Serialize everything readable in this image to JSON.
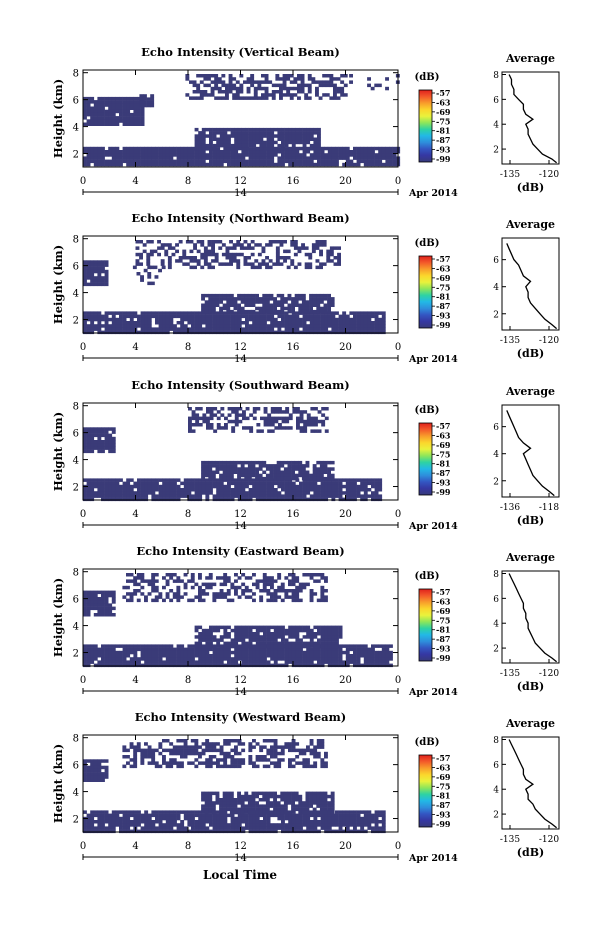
{
  "figure": {
    "date_label": "Apr 2014",
    "day_label": "14",
    "xlabel": "Local Time"
  },
  "colorbar": {
    "unit_label": "(dB)",
    "tick_labels": [
      "-57",
      "-63",
      "-69",
      "-75",
      "-81",
      "-87",
      "-93",
      "-99"
    ],
    "colors": [
      "#e0201c",
      "#f3592a",
      "#f89d2b",
      "#fbd62c",
      "#e9f23c",
      "#8ee65a",
      "#2fd3a2",
      "#22b9e6",
      "#2e8fdc",
      "#3356c2",
      "#3537a2",
      "#373a7a"
    ]
  },
  "colors": {
    "echo_fill": "#3a3b78",
    "background": "#ffffff"
  },
  "chart_data": [
    {
      "type": "heatmap",
      "title": "Echo Intensity (Vertical Beam)",
      "ylabel": "Height (km)",
      "xlim": [
        0,
        24
      ],
      "ylim": [
        1.0,
        8.2
      ],
      "x_ticks": [
        "0",
        "4",
        "8",
        "12",
        "16",
        "20",
        "0"
      ],
      "y_ticks": [
        "2",
        "4",
        "6",
        "8"
      ],
      "bands": [
        {
          "x0": 0.0,
          "x1": 4.4,
          "y0": 4.2,
          "y1": 6.2,
          "density": 0.92
        },
        {
          "x0": 4.3,
          "x1": 5.3,
          "y0": 5.6,
          "y1": 6.4,
          "density": 0.85
        },
        {
          "x0": 0.0,
          "x1": 24.0,
          "y0": 1.1,
          "y1": 2.5,
          "density": 0.93
        },
        {
          "x0": 8.5,
          "x1": 18.0,
          "y0": 2.4,
          "y1": 3.9,
          "density": 0.88
        },
        {
          "x0": 7.8,
          "x1": 20.0,
          "y0": 6.0,
          "y1": 7.9,
          "density": 0.55
        },
        {
          "x0": 20.0,
          "x1": 24.0,
          "y0": 6.8,
          "y1": 7.9,
          "density": 0.12
        }
      ],
      "average": {
        "title": "Average",
        "xlabel": "(dB)",
        "x_ticks": [
          "-135",
          "-120"
        ],
        "y_ticks": [
          "2",
          "4",
          "6",
          "8"
        ],
        "xlim": [
          -138,
          -114
        ],
        "ylim": [
          0.8,
          8.2
        ],
        "height": [
          0.9,
          1.2,
          1.6,
          2.0,
          2.4,
          2.8,
          3.2,
          3.6,
          4.0,
          4.4,
          4.8,
          5.2,
          5.6,
          6.0,
          6.4,
          6.8,
          7.2,
          7.6,
          8.0
        ],
        "value": [
          -115,
          -117,
          -121,
          -123,
          -125,
          -126,
          -127,
          -127,
          -128,
          -125,
          -128,
          -129,
          -129,
          -131,
          -133,
          -133,
          -134,
          -134,
          -135
        ]
      }
    },
    {
      "type": "heatmap",
      "title": "Echo Intensity (Northward Beam)",
      "ylabel": "Height (km)",
      "xlim": [
        0,
        24
      ],
      "ylim": [
        1.0,
        8.2
      ],
      "x_ticks": [
        "0",
        "4",
        "8",
        "12",
        "16",
        "20",
        "0"
      ],
      "y_ticks": [
        "2",
        "4",
        "6",
        "8"
      ],
      "bands": [
        {
          "x0": 0.0,
          "x1": 1.8,
          "y0": 4.6,
          "y1": 6.4,
          "density": 0.9
        },
        {
          "x0": 0.0,
          "x1": 23.0,
          "y0": 1.1,
          "y1": 2.6,
          "density": 0.92
        },
        {
          "x0": 9.0,
          "x1": 19.0,
          "y0": 2.5,
          "y1": 3.9,
          "density": 0.85
        },
        {
          "x0": 4.0,
          "x1": 19.5,
          "y0": 5.8,
          "y1": 7.9,
          "density": 0.5
        },
        {
          "x0": 3.8,
          "x1": 6.0,
          "y0": 4.8,
          "y1": 6.0,
          "density": 0.35
        }
      ],
      "average": {
        "title": "Average",
        "xlabel": "(dB)",
        "x_ticks": [
          "-135",
          "-120"
        ],
        "y_ticks": [
          "2",
          "4",
          "6"
        ],
        "xlim": [
          -138,
          -114
        ],
        "ylim": [
          0.8,
          7.6
        ],
        "height": [
          0.9,
          1.2,
          1.6,
          2.0,
          2.4,
          2.8,
          3.2,
          3.6,
          4.0,
          4.4,
          4.8,
          5.2,
          5.6,
          6.0,
          6.4,
          6.8,
          7.2
        ],
        "value": [
          -115,
          -117,
          -120,
          -122,
          -124,
          -126,
          -127,
          -127,
          -128,
          -126,
          -129,
          -130,
          -131,
          -133,
          -134,
          -135,
          -136
        ]
      }
    },
    {
      "type": "heatmap",
      "title": "Echo Intensity (Southward Beam)",
      "ylabel": "Height (km)",
      "xlim": [
        0,
        24
      ],
      "ylim": [
        1.0,
        8.2
      ],
      "x_ticks": [
        "0",
        "4",
        "8",
        "12",
        "16",
        "20",
        "0"
      ],
      "y_ticks": [
        "2",
        "4",
        "6",
        "8"
      ],
      "bands": [
        {
          "x0": 0.0,
          "x1": 2.4,
          "y0": 4.6,
          "y1": 6.4,
          "density": 0.9
        },
        {
          "x0": 0.0,
          "x1": 22.5,
          "y0": 1.1,
          "y1": 2.6,
          "density": 0.92
        },
        {
          "x0": 9.0,
          "x1": 19.0,
          "y0": 2.5,
          "y1": 3.9,
          "density": 0.86
        },
        {
          "x0": 8.0,
          "x1": 18.5,
          "y0": 6.0,
          "y1": 7.9,
          "density": 0.5
        },
        {
          "x0": 5.0,
          "x1": 6.0,
          "y0": 6.2,
          "y1": 6.9,
          "density": 0.3
        }
      ],
      "average": {
        "title": "Average",
        "xlabel": "(dB)",
        "x_ticks": [
          "-136",
          "-118"
        ],
        "y_ticks": [
          "2",
          "4",
          "6"
        ],
        "xlim": [
          -138,
          -114
        ],
        "ylim": [
          0.8,
          7.6
        ],
        "height": [
          0.9,
          1.2,
          1.6,
          2.0,
          2.4,
          2.8,
          3.2,
          3.6,
          4.0,
          4.4,
          4.8,
          5.2,
          5.6,
          6.0,
          6.4,
          6.8,
          7.2
        ],
        "value": [
          -116,
          -118,
          -121,
          -123,
          -125,
          -126,
          -127,
          -128,
          -129,
          -126,
          -129,
          -131,
          -132,
          -133,
          -134,
          -135,
          -136
        ]
      }
    },
    {
      "type": "heatmap",
      "title": "Echo Intensity (Eastward Beam)",
      "ylabel": "Height (km)",
      "xlim": [
        0,
        24
      ],
      "ylim": [
        1.0,
        8.2
      ],
      "x_ticks": [
        "0",
        "4",
        "8",
        "12",
        "16",
        "20",
        "0"
      ],
      "y_ticks": [
        "2",
        "4",
        "6",
        "8"
      ],
      "bands": [
        {
          "x0": 0.0,
          "x1": 2.2,
          "y0": 4.8,
          "y1": 6.6,
          "density": 0.9
        },
        {
          "x0": 0.0,
          "x1": 23.5,
          "y0": 1.1,
          "y1": 2.6,
          "density": 0.92
        },
        {
          "x0": 8.5,
          "x1": 19.5,
          "y0": 2.5,
          "y1": 4.0,
          "density": 0.86
        },
        {
          "x0": 3.0,
          "x1": 18.5,
          "y0": 5.8,
          "y1": 7.9,
          "density": 0.48
        }
      ],
      "average": {
        "title": "Average",
        "xlabel": "(dB)",
        "x_ticks": [
          "-135",
          "-120"
        ],
        "y_ticks": [
          "2",
          "4",
          "6",
          "8"
        ],
        "xlim": [
          -138,
          -114
        ],
        "ylim": [
          0.8,
          8.2
        ],
        "height": [
          0.9,
          1.2,
          1.6,
          2.0,
          2.4,
          2.8,
          3.2,
          3.6,
          4.0,
          4.4,
          4.8,
          5.2,
          5.6,
          6.0,
          6.4,
          6.8,
          7.2,
          7.6,
          8.0
        ],
        "value": [
          -115,
          -117,
          -120,
          -122,
          -124,
          -125,
          -126,
          -127,
          -127,
          -128,
          -128,
          -129,
          -129,
          -130,
          -131,
          -132,
          -133,
          -134,
          -135
        ]
      }
    },
    {
      "type": "heatmap",
      "title": "Echo Intensity (Westward Beam)",
      "ylabel": "Height (km)",
      "xlim": [
        0,
        24
      ],
      "ylim": [
        1.0,
        8.2
      ],
      "x_ticks": [
        "0",
        "4",
        "8",
        "12",
        "16",
        "20",
        "0"
      ],
      "y_ticks": [
        "2",
        "4",
        "6",
        "8"
      ],
      "bands": [
        {
          "x0": 0.0,
          "x1": 1.8,
          "y0": 4.8,
          "y1": 6.4,
          "density": 0.88
        },
        {
          "x0": 0.0,
          "x1": 23.0,
          "y0": 1.1,
          "y1": 2.6,
          "density": 0.92
        },
        {
          "x0": 9.0,
          "x1": 19.0,
          "y0": 2.5,
          "y1": 4.0,
          "density": 0.86
        },
        {
          "x0": 3.0,
          "x1": 18.5,
          "y0": 5.8,
          "y1": 7.9,
          "density": 0.5
        }
      ],
      "average": {
        "title": "Average",
        "xlabel": "(dB)",
        "x_ticks": [
          "-135",
          "-120"
        ],
        "y_ticks": [
          "2",
          "4",
          "6",
          "8"
        ],
        "xlim": [
          -138,
          -114
        ],
        "ylim": [
          0.8,
          8.2
        ],
        "height": [
          0.9,
          1.2,
          1.6,
          2.0,
          2.4,
          2.8,
          3.2,
          3.6,
          4.0,
          4.4,
          4.8,
          5.2,
          5.6,
          6.0,
          6.4,
          6.8,
          7.2,
          7.6,
          8.0
        ],
        "value": [
          -115,
          -117,
          -120,
          -122,
          -124,
          -125,
          -127,
          -127,
          -128,
          -125,
          -128,
          -129,
          -129,
          -130,
          -131,
          -132,
          -133,
          -134,
          -135
        ]
      }
    }
  ]
}
